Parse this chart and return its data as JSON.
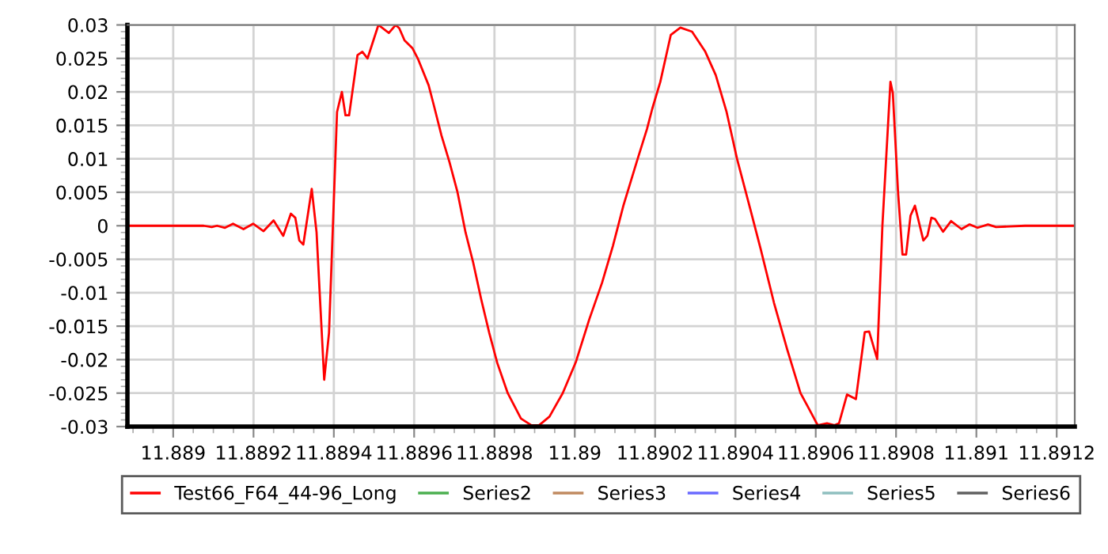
{
  "chart_data": {
    "type": "line",
    "xlim": [
      11.888886,
      11.891245
    ],
    "ylim": [
      -0.03,
      0.03
    ],
    "xticks": [
      11.889,
      11.8892,
      11.8894,
      11.8896,
      11.8898,
      11.89,
      11.8902,
      11.8904,
      11.8906,
      11.8908,
      11.891,
      11.8912
    ],
    "yticks": [
      -0.03,
      -0.025,
      -0.02,
      -0.015,
      -0.01,
      -0.005,
      0,
      0.005,
      0.01,
      0.015,
      0.02,
      0.025,
      0.03
    ],
    "grid": true,
    "legend": "bottom",
    "marker": "none",
    "line_style": "solid",
    "series": [
      {
        "name": "Test66_F64_44-96_Long",
        "color": "#ff0000",
        "x": [
          11.88889,
          11.889076,
          11.889096,
          11.889109,
          11.889129,
          11.889149,
          11.889175,
          11.889199,
          11.889225,
          11.88925,
          11.889274,
          11.889293,
          11.889304,
          11.889314,
          11.889324,
          11.889345,
          11.889357,
          11.889376,
          11.889388,
          11.889408,
          11.88942,
          11.889429,
          11.889438,
          11.889459,
          11.889471,
          11.889484,
          11.889511,
          11.889537,
          11.889554,
          11.889563,
          11.889576,
          11.889596,
          11.889609,
          11.889636,
          11.889649,
          11.889668,
          11.889688,
          11.889708,
          11.889728,
          11.889747,
          11.889767,
          11.889787,
          11.889807,
          11.889833,
          11.889866,
          11.889892,
          11.889911,
          11.889937,
          11.88997,
          11.890003,
          11.890036,
          11.890068,
          11.890095,
          11.890121,
          11.890154,
          11.89018,
          11.890193,
          11.890213,
          11.890239,
          11.890263,
          11.890292,
          11.890325,
          11.890351,
          11.890378,
          11.890404,
          11.890437,
          11.890463,
          11.890496,
          11.890529,
          11.890562,
          11.890582,
          11.890605,
          11.890628,
          11.890647,
          11.890658,
          11.890678,
          11.8907,
          11.890722,
          11.890733,
          11.890753,
          11.890766,
          11.890786,
          11.890792,
          11.890805,
          11.890816,
          11.890825,
          11.890836,
          11.890847,
          11.890868,
          11.890878,
          11.890888,
          11.890897,
          11.890917,
          11.890937,
          11.890963,
          11.890983,
          11.891003,
          11.891029,
          11.891049,
          11.891082,
          11.891121,
          11.891243
        ],
        "values": [
          0,
          0,
          -0.0002,
          0,
          -0.0003,
          0.0003,
          -0.0005,
          0.0003,
          -0.0008,
          0.0008,
          -0.0015,
          0.0018,
          0.0012,
          -0.0022,
          -0.0028,
          0.0055,
          -0.001,
          -0.023,
          -0.016,
          0.017,
          0.02,
          0.0165,
          0.0165,
          0.0255,
          0.026,
          0.025,
          0.03,
          0.0288,
          0.03,
          0.0295,
          0.0277,
          0.0265,
          0.025,
          0.021,
          0.018,
          0.0135,
          0.0095,
          0.005,
          -0.001,
          -0.0055,
          -0.011,
          -0.016,
          -0.0205,
          -0.025,
          -0.0288,
          -0.0298,
          -0.0298,
          -0.0285,
          -0.025,
          -0.0203,
          -0.014,
          -0.0085,
          -0.003,
          0.003,
          0.0095,
          0.0145,
          0.0175,
          0.0215,
          0.0285,
          0.0296,
          0.029,
          0.026,
          0.0225,
          0.017,
          0.01,
          0.0025,
          -0.0035,
          -0.0115,
          -0.0185,
          -0.025,
          -0.0272,
          -0.0298,
          -0.0295,
          -0.0298,
          -0.0295,
          -0.0252,
          -0.0259,
          -0.0159,
          -0.0158,
          -0.0199,
          0,
          0.0215,
          0.0198,
          0.005,
          -0.0043,
          -0.0043,
          0.0015,
          0.003,
          -0.0022,
          -0.0015,
          0.0012,
          0.001,
          -0.0009,
          0.0007,
          -0.0005,
          0.0002,
          -0.0003,
          0.0002,
          -0.0002,
          -0.0001,
          0,
          0
        ]
      },
      {
        "name": "Series2",
        "color": "#4caf50"
      },
      {
        "name": "Series3",
        "color": "#c08a60"
      },
      {
        "name": "Series4",
        "color": "#6a6aff"
      },
      {
        "name": "Series5",
        "color": "#8fbfbf"
      },
      {
        "name": "Series6",
        "color": "#606060"
      }
    ]
  }
}
